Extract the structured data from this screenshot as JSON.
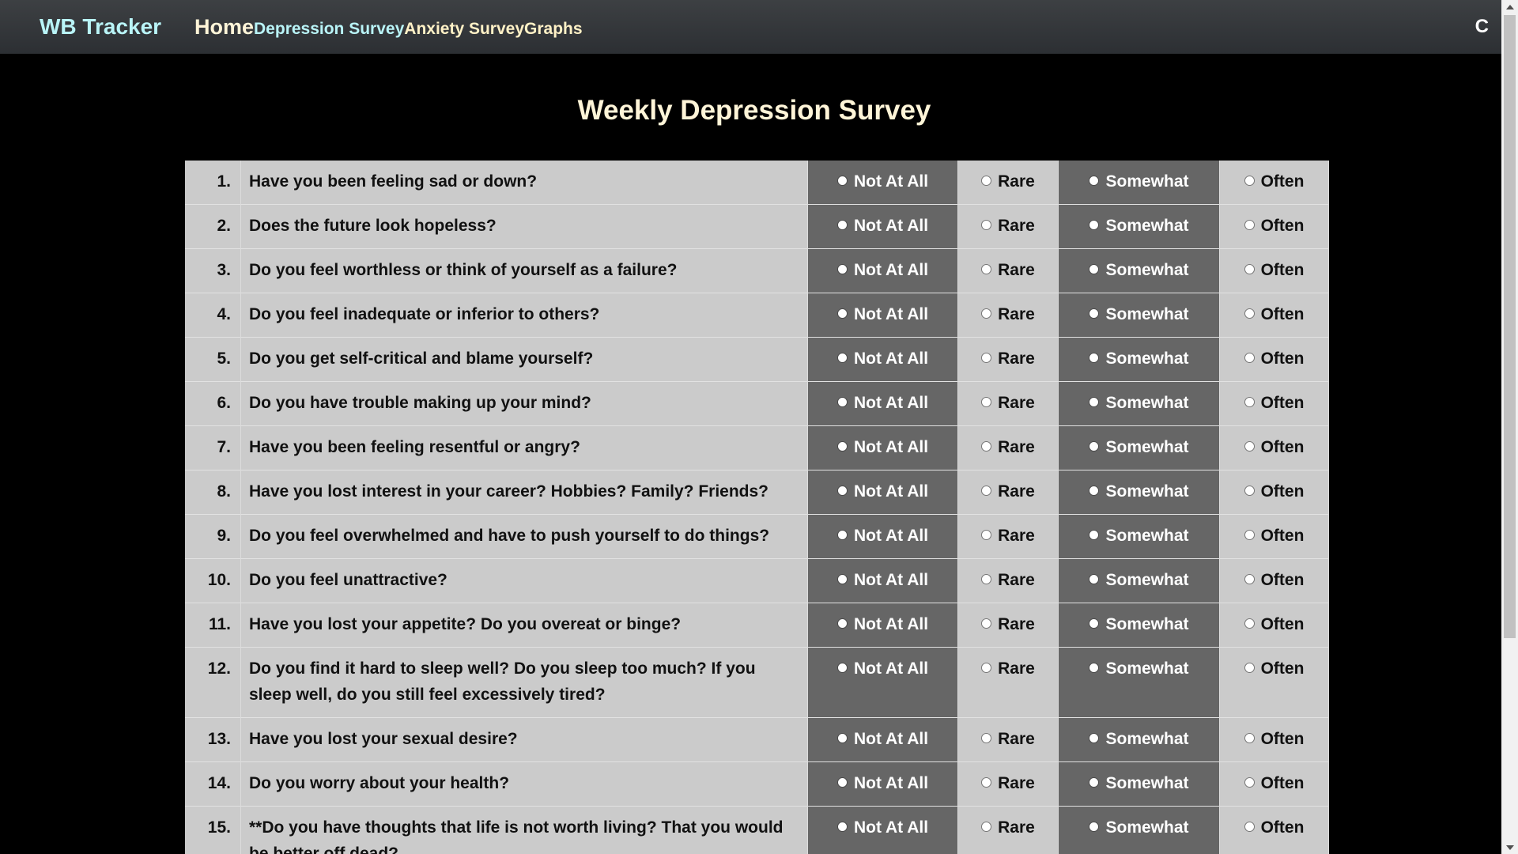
{
  "navbar": {
    "brand": "WB Tracker",
    "home": "Home",
    "links": [
      "Depression Survey",
      "Anxiety Survey",
      "Graphs"
    ],
    "right_initial": "C"
  },
  "page": {
    "title": "Weekly Depression Survey"
  },
  "options": [
    "Not At All",
    "Rare",
    "Somewhat",
    "Often"
  ],
  "questions": [
    {
      "num": "1.",
      "text": "Have you been feeling sad or down?"
    },
    {
      "num": "2.",
      "text": "Does the future look hopeless?"
    },
    {
      "num": "3.",
      "text": "Do you feel worthless or think of yourself as a failure?"
    },
    {
      "num": "4.",
      "text": "Do you feel inadequate or inferior to others?"
    },
    {
      "num": "5.",
      "text": "Do you get self-critical and blame yourself?"
    },
    {
      "num": "6.",
      "text": "Do you have trouble making up your mind?"
    },
    {
      "num": "7.",
      "text": "Have you been feeling resentful or angry?"
    },
    {
      "num": "8.",
      "text": "Have you lost interest in your career? Hobbies? Family? Friends?"
    },
    {
      "num": "9.",
      "text": "Do you feel overwhelmed and have to push yourself to do things?"
    },
    {
      "num": "10.",
      "text": "Do you feel unattractive?"
    },
    {
      "num": "11.",
      "text": "Have you lost your appetite? Do you overeat or binge?"
    },
    {
      "num": "12.",
      "text": "Do you find it hard to sleep well? Do you sleep too much? If you sleep well, do you still feel excessively tired?"
    },
    {
      "num": "13.",
      "text": "Have you lost your sexual desire?"
    },
    {
      "num": "14.",
      "text": "Do you worry about your health?"
    },
    {
      "num": "15.",
      "text": "**Do you have thoughts that life is not worth living? That you would be better off dead?"
    }
  ],
  "colors": {
    "brand": "#b9f4f7",
    "nav_text": "#fff1c6",
    "title": "#fff5d8",
    "light_cell": "#cbcbcb",
    "dark_cell": "#666666"
  }
}
